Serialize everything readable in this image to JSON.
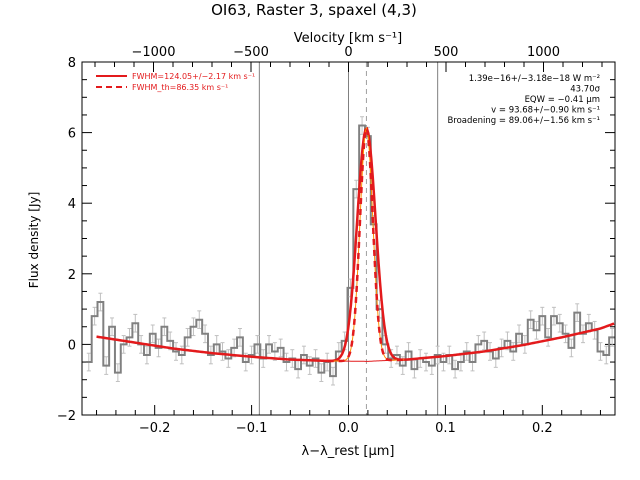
{
  "chart_data": {
    "type": "line",
    "title": "OI63, Raster 3, spaxel (4,3)",
    "top_axis": {
      "label": "Velocity [km s⁻¹]",
      "ticks": [
        -1000,
        -500,
        0,
        500,
        1000
      ],
      "tick_labels": [
        "−1000",
        "−500",
        "0",
        "500",
        "1000"
      ]
    },
    "xlabel": "λ−λ_rest [μm]",
    "ylabel": "Flux density [Jy]",
    "xlim": [
      -0.275,
      0.275
    ],
    "ylim": [
      -2.0,
      8.0
    ],
    "x_ticks": [
      -0.2,
      -0.1,
      0.0,
      0.1,
      0.2
    ],
    "x_tick_labels": [
      "−0.2",
      "−0.1",
      "0.0",
      "0.1",
      "0.2"
    ],
    "y_ticks": [
      -2,
      0,
      2,
      4,
      6,
      8
    ],
    "y_tick_labels": [
      "−2",
      "0",
      "2",
      "4",
      "6",
      "8"
    ],
    "vertical_lines": [
      -0.092,
      0.0,
      0.092
    ],
    "center_line": 0.0185,
    "legend": [
      {
        "label": "FWHM=124.05+/−2.17 km s⁻¹",
        "style": "solid",
        "color": "#e31a1c"
      },
      {
        "label": "FWHM_th=86.35 km s⁻¹",
        "style": "dashed",
        "color": "#e31a1c"
      }
    ],
    "annotations": [
      "1.39e−16+/−3.18e−18 W m⁻²",
      "43.70σ",
      "EQW = −0.41 μm",
      "v = 93.68+/−0.90 km s⁻¹",
      "Broadening = 89.06+/−1.56 km s⁻¹"
    ],
    "series": [
      {
        "style": "histogram",
        "color": "#808080",
        "x": [
          -0.268,
          -0.262,
          -0.256,
          -0.25,
          -0.244,
          -0.238,
          -0.232,
          -0.226,
          -0.22,
          -0.214,
          -0.208,
          -0.202,
          -0.196,
          -0.19,
          -0.184,
          -0.178,
          -0.172,
          -0.166,
          -0.16,
          -0.154,
          -0.148,
          -0.142,
          -0.136,
          -0.13,
          -0.124,
          -0.118,
          -0.112,
          -0.106,
          -0.1,
          -0.094,
          -0.088,
          -0.082,
          -0.076,
          -0.07,
          -0.064,
          -0.058,
          -0.052,
          -0.046,
          -0.04,
          -0.034,
          -0.028,
          -0.022,
          -0.016,
          -0.01,
          -0.004,
          0.002,
          0.008,
          0.014,
          0.02,
          0.026,
          0.032,
          0.038,
          0.044,
          0.05,
          0.056,
          0.062,
          0.068,
          0.074,
          0.08,
          0.086,
          0.092,
          0.098,
          0.104,
          0.11,
          0.116,
          0.122,
          0.128,
          0.134,
          0.14,
          0.146,
          0.152,
          0.158,
          0.164,
          0.17,
          0.176,
          0.182,
          0.188,
          0.194,
          0.2,
          0.206,
          0.212,
          0.218,
          0.224,
          0.23,
          0.236,
          0.242,
          0.248,
          0.254,
          0.26,
          0.266,
          0.272
        ],
        "values": [
          -0.5,
          0.8,
          1.2,
          -0.6,
          0.5,
          -0.8,
          0.0,
          0.2,
          0.6,
          0.0,
          -0.3,
          0.3,
          -0.1,
          0.5,
          0.1,
          -0.2,
          -0.3,
          0.2,
          0.5,
          0.7,
          0.3,
          -0.3,
          0.0,
          -0.2,
          -0.4,
          -0.1,
          0.2,
          -0.5,
          -0.3,
          0.0,
          -0.4,
          0.0,
          -0.2,
          -0.1,
          -0.5,
          -0.4,
          -0.7,
          -0.3,
          -0.6,
          -0.4,
          -0.8,
          -0.5,
          -0.9,
          -0.2,
          0.1,
          1.6,
          4.4,
          6.2,
          5.9,
          3.4,
          1.0,
          0.0,
          -0.4,
          -0.3,
          -0.6,
          -0.2,
          -0.7,
          -0.4,
          -0.5,
          -0.6,
          -0.3,
          -0.5,
          -0.3,
          -0.7,
          -0.5,
          -0.2,
          -0.5,
          0.0,
          0.1,
          -0.2,
          -0.4,
          -0.1,
          0.1,
          -0.2,
          0.3,
          0.0,
          0.7,
          0.4,
          0.8,
          0.2,
          0.8,
          0.6,
          0.3,
          -0.1,
          0.9,
          0.3,
          0.6,
          0.4,
          -0.2,
          -0.3,
          0.2
        ],
        "error": 0.25
      },
      {
        "style": "fit_solid",
        "color": "#e31a1c",
        "continuum": {
          "x": [
            -0.26,
            -0.22,
            -0.18,
            -0.14,
            -0.1,
            -0.06,
            -0.02,
            0.02,
            0.06,
            0.1,
            0.14,
            0.18,
            0.22,
            0.26,
            0.275
          ],
          "values": [
            0.22,
            0.05,
            -0.12,
            -0.25,
            -0.35,
            -0.43,
            -0.47,
            -0.48,
            -0.43,
            -0.33,
            -0.2,
            -0.02,
            0.2,
            0.45,
            0.6
          ]
        },
        "peak": {
          "center": 0.0185,
          "amplitude": 6.6,
          "sigma": 0.0095
        }
      },
      {
        "style": "fit_dashed",
        "color": "#e31a1c",
        "peak": {
          "center": 0.0185,
          "amplitude": 6.6,
          "sigma": 0.0066
        }
      }
    ]
  }
}
